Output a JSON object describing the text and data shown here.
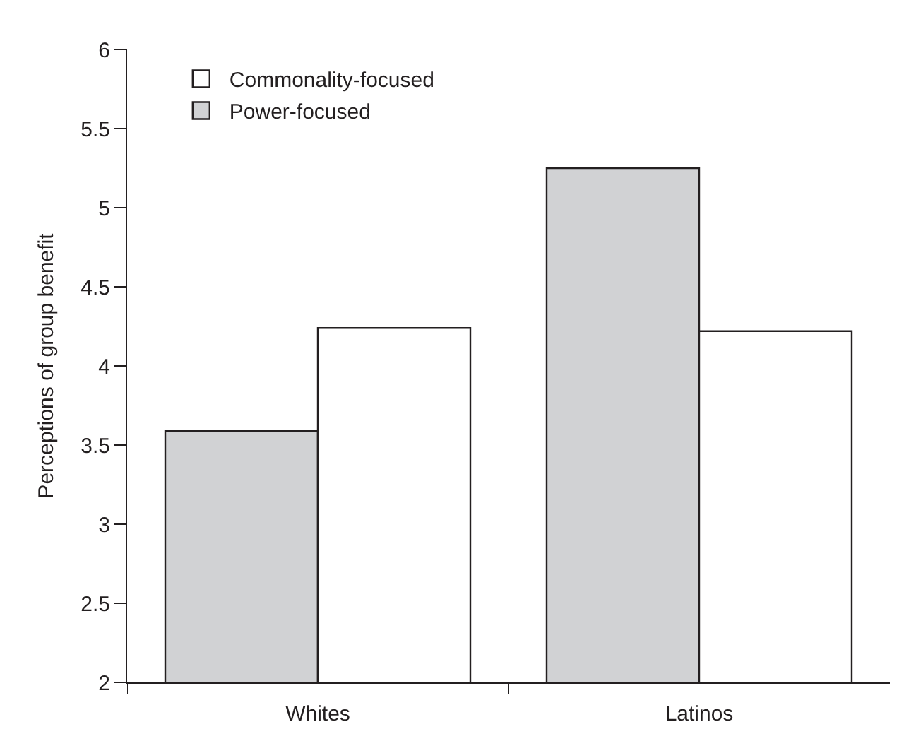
{
  "chart_data": {
    "type": "bar",
    "ylabel": "Perceptions of group benefit",
    "categories": [
      "Whites",
      "Latinos"
    ],
    "series": [
      {
        "name": "Power-focused",
        "color": "#d1d2d4",
        "values": [
          3.59,
          5.25
        ]
      },
      {
        "name": "Commonality-focused",
        "color": "#ffffff",
        "values": [
          4.24,
          4.22
        ]
      }
    ],
    "ylim": [
      2,
      6
    ],
    "yticks": [
      2,
      2.5,
      3,
      3.5,
      4,
      4.5,
      5,
      5.5,
      6
    ],
    "legend": "top left"
  }
}
